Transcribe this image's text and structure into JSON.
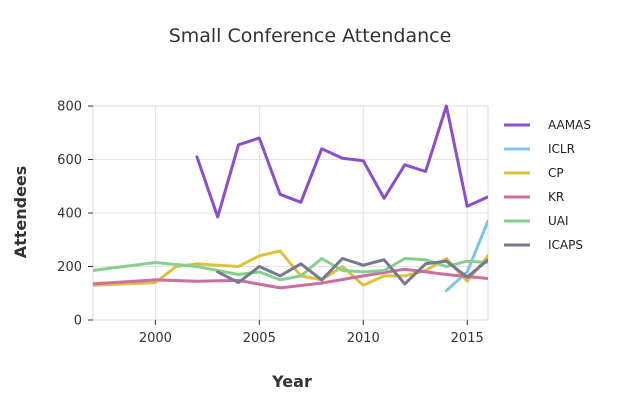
{
  "chart_data": {
    "type": "line",
    "title": "Small Conference Attendance",
    "xlabel": "Year",
    "ylabel": "Attendees",
    "xlim": [
      1997,
      2016
    ],
    "ylim": [
      0,
      800
    ],
    "x_ticks": [
      2000,
      2005,
      2010,
      2015
    ],
    "y_ticks": [
      0,
      200,
      400,
      600,
      800
    ],
    "grid": true,
    "legend_position": "right",
    "series": [
      {
        "name": "AAMAS",
        "color": "#8b4fcc",
        "x": [
          2002,
          2003,
          2004,
          2005,
          2006,
          2007,
          2008,
          2009,
          2010,
          2011,
          2012,
          2013,
          2014,
          2015,
          2016
        ],
        "values": [
          610,
          385,
          655,
          680,
          470,
          440,
          640,
          605,
          595,
          455,
          580,
          555,
          800,
          425,
          460
        ]
      },
      {
        "name": "ICLR",
        "color": "#7fc3ea",
        "x": [
          2014,
          2015,
          2016
        ],
        "values": [
          110,
          180,
          370
        ]
      },
      {
        "name": "CP",
        "color": "#dcc23c",
        "x": [
          1997,
          2000,
          2001,
          2002,
          2003,
          2004,
          2005,
          2006,
          2007,
          2008,
          2009,
          2010,
          2011,
          2012,
          2013,
          2014,
          2015,
          2016
        ],
        "values": [
          130,
          140,
          200,
          210,
          205,
          200,
          240,
          258,
          165,
          150,
          200,
          130,
          165,
          165,
          185,
          230,
          145,
          240
        ]
      },
      {
        "name": "KR",
        "color": "#c96fa2",
        "x": [
          1997,
          2000,
          2002,
          2004,
          2006,
          2008,
          2010,
          2012,
          2014,
          2016
        ],
        "values": [
          135,
          150,
          145,
          148,
          120,
          138,
          165,
          190,
          170,
          155
        ]
      },
      {
        "name": "UAI",
        "color": "#86d08e",
        "x": [
          1997,
          1998,
          2000,
          2002,
          2004,
          2005,
          2006,
          2007,
          2008,
          2009,
          2010,
          2011,
          2012,
          2013,
          2014,
          2015,
          2016
        ],
        "values": [
          185,
          195,
          215,
          200,
          170,
          180,
          150,
          165,
          230,
          185,
          180,
          185,
          230,
          225,
          200,
          220,
          215
        ]
      },
      {
        "name": "ICAPS",
        "color": "#787890",
        "x": [
          2003,
          2004,
          2005,
          2006,
          2007,
          2008,
          2009,
          2010,
          2011,
          2012,
          2013,
          2014,
          2015,
          2016
        ],
        "values": [
          180,
          140,
          200,
          165,
          210,
          150,
          230,
          205,
          225,
          135,
          210,
          220,
          160,
          225
        ]
      }
    ]
  }
}
